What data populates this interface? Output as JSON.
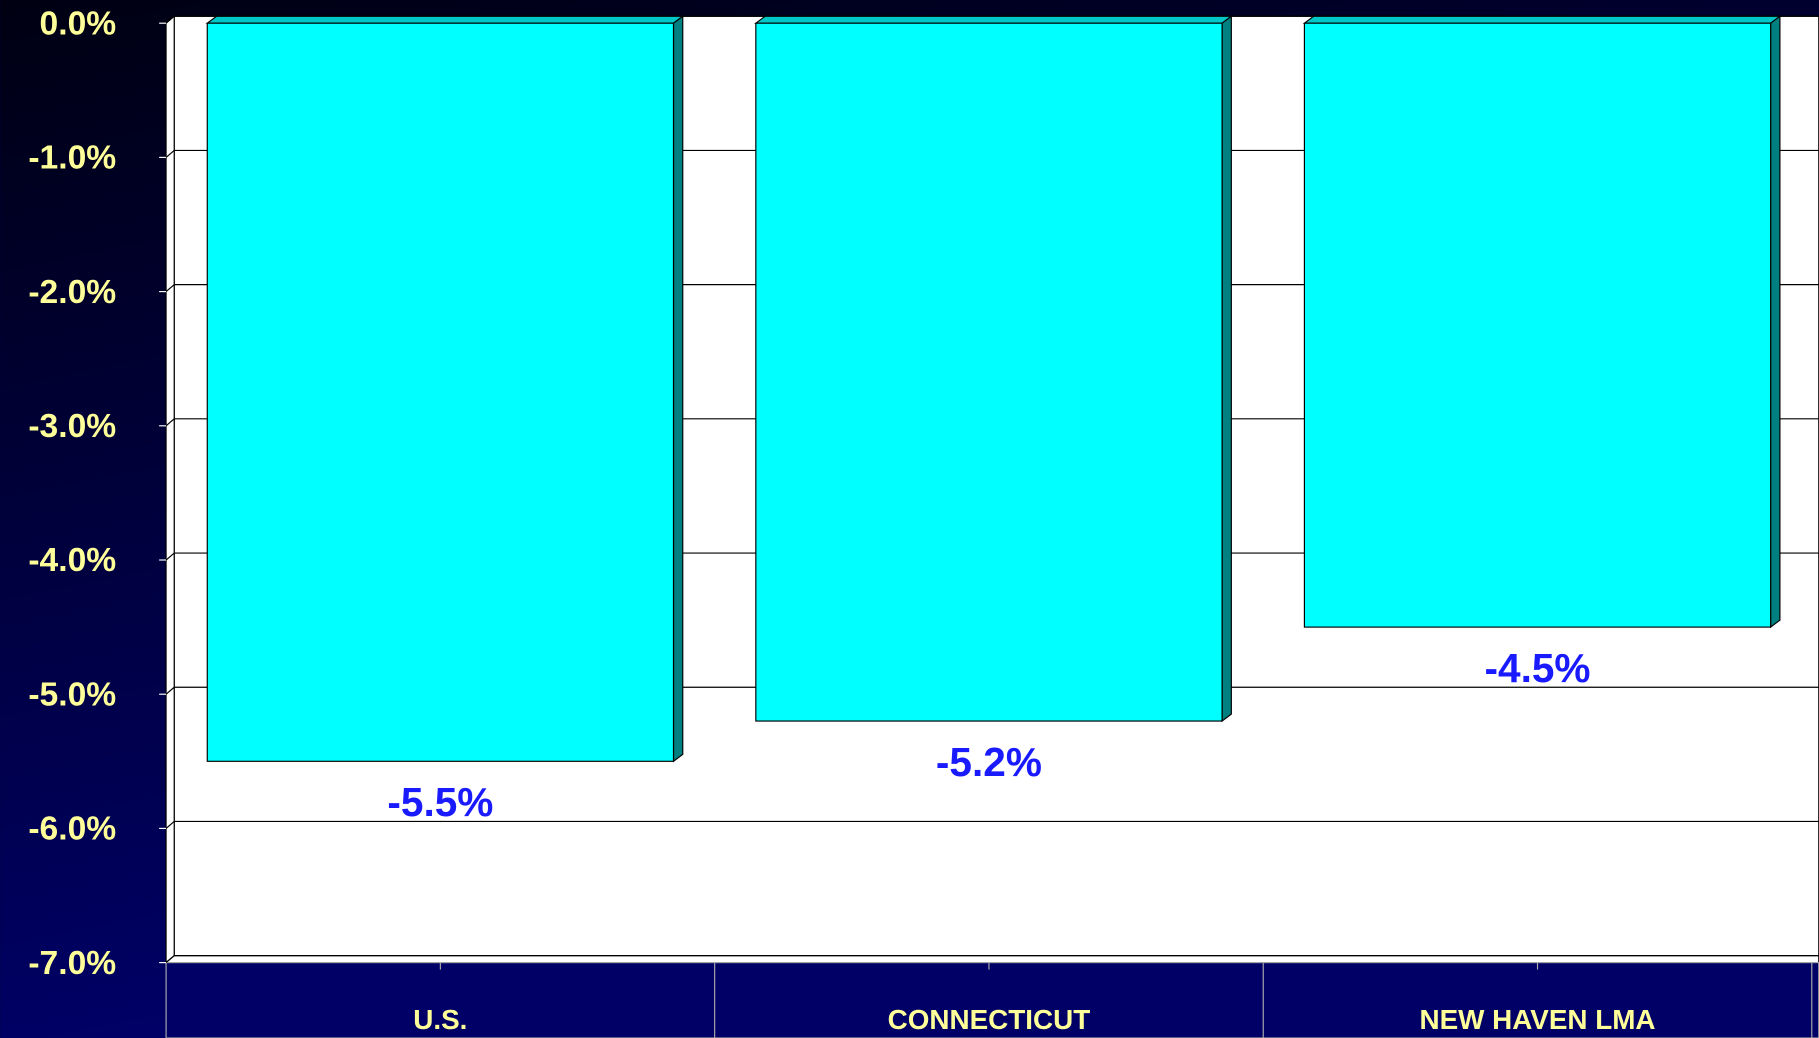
{
  "chart_data": {
    "type": "bar",
    "categories": [
      "U.S.",
      "CONNECTICUT",
      "NEW HAVEN LMA"
    ],
    "values": [
      -5.5,
      -5.2,
      -4.5
    ],
    "value_labels": [
      "-5.5%",
      "-5.2%",
      "-4.5%"
    ],
    "color": "#00ffff",
    "ylim": [
      -7,
      0
    ],
    "yticks": [
      {
        "value": 0,
        "label": "0.0%"
      },
      {
        "value": -1,
        "label": "-1.0%"
      },
      {
        "value": -2,
        "label": "-2.0%"
      },
      {
        "value": -3,
        "label": "-3.0%"
      },
      {
        "value": -4,
        "label": "-4.0%"
      },
      {
        "value": -5,
        "label": "-5.0%"
      },
      {
        "value": -6,
        "label": "-6.0%"
      },
      {
        "value": -7,
        "label": "-7.0%"
      }
    ],
    "grid": true
  }
}
